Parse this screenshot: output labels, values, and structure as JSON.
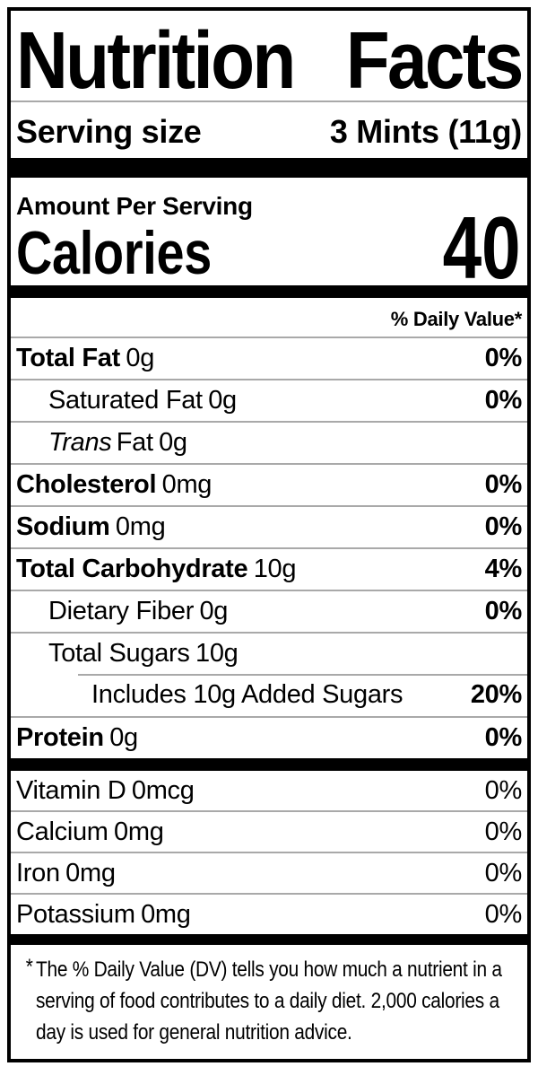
{
  "label": {
    "title": "Nutrition Facts",
    "serving": {
      "label": "Serving size",
      "value": "3 Mints (11g)"
    },
    "calories_section": {
      "amount_per_serving": "Amount Per Serving",
      "calories_label": "Calories",
      "calories_value": "40"
    },
    "daily_value_header": "% Daily Value*",
    "nutrients": [
      {
        "name": "Total Fat",
        "amount": "0g",
        "dv": "0%"
      },
      {
        "name": "Saturated Fat",
        "amount": "0g",
        "dv": "0%"
      },
      {
        "name_italic": "Trans",
        "name": "Fat",
        "amount": "0g",
        "dv": ""
      },
      {
        "name": "Cholesterol",
        "amount": "0mg",
        "dv": "0%"
      },
      {
        "name": "Sodium",
        "amount": "0mg",
        "dv": "0%"
      },
      {
        "name": "Total Carbohydrate",
        "amount": "10g",
        "dv": "4%"
      },
      {
        "name": "Dietary Fiber",
        "amount": "0g",
        "dv": "0%"
      },
      {
        "name": "Total Sugars",
        "amount": "10g",
        "dv": ""
      },
      {
        "name": "Includes 10g Added Sugars",
        "amount": "",
        "dv": "20%"
      },
      {
        "name": "Protein",
        "amount": "0g",
        "dv": "0%"
      }
    ],
    "vitamins": [
      {
        "name": "Vitamin D",
        "amount": "0mcg",
        "dv": "0%"
      },
      {
        "name": "Calcium",
        "amount": "0mg",
        "dv": "0%"
      },
      {
        "name": "Iron",
        "amount": "0mg",
        "dv": "0%"
      },
      {
        "name": "Potassium",
        "amount": "0mg",
        "dv": "0%"
      }
    ],
    "footnote": {
      "asterisk": "*",
      "lines": [
        "The % Daily Value (DV) tells you how much a nutrient in a",
        "serving of food contributes to a daily diet. 2,000 calories a",
        "day is used for general nutrition advice."
      ]
    }
  }
}
